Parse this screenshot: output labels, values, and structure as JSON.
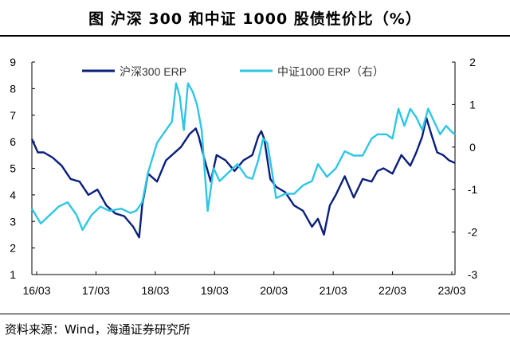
{
  "header": {
    "title": "图  沪深 300 和中证 1000 股债性价比（%）"
  },
  "footer": {
    "source": "资料来源：Wind，海通证券研究所"
  },
  "chart_data": {
    "type": "line",
    "title": "沪深 300 和中证 1000 股债性价比（%）",
    "x_tick_labels": [
      "16/03",
      "17/03",
      "18/03",
      "19/03",
      "20/03",
      "21/03",
      "22/03",
      "23/03"
    ],
    "x_range": [
      2016.2,
      2023.3
    ],
    "y_left": {
      "min": 1,
      "max": 9,
      "ticks": [
        1,
        2,
        3,
        4,
        5,
        6,
        7,
        8,
        9
      ]
    },
    "y_right": {
      "min": -3,
      "max": 2,
      "ticks": [
        -3,
        -2,
        -1,
        0,
        1,
        2
      ]
    },
    "grid": false,
    "legend_position": "top",
    "series": [
      {
        "name": "沪深300 ERP",
        "axis": "left",
        "color": "#0a1f7d",
        "x": [
          2016.2,
          2016.3,
          2016.4,
          2016.55,
          2016.7,
          2016.85,
          2017.0,
          2017.15,
          2017.3,
          2017.45,
          2017.6,
          2017.75,
          2017.9,
          2018.0,
          2018.05,
          2018.15,
          2018.3,
          2018.45,
          2018.55,
          2018.7,
          2018.85,
          2018.95,
          2019.0,
          2019.1,
          2019.2,
          2019.3,
          2019.45,
          2019.6,
          2019.75,
          2019.9,
          2020.0,
          2020.05,
          2020.1,
          2020.2,
          2020.3,
          2020.45,
          2020.6,
          2020.75,
          2020.9,
          2021.0,
          2021.1,
          2021.2,
          2021.3,
          2021.45,
          2021.6,
          2021.75,
          2021.9,
          2022.0,
          2022.1,
          2022.25,
          2022.4,
          2022.55,
          2022.65,
          2022.75,
          2022.82,
          2022.9,
          2023.0,
          2023.1,
          2023.2,
          2023.3
        ],
        "values": [
          6.1,
          5.6,
          5.6,
          5.4,
          5.1,
          4.6,
          4.5,
          4.0,
          4.2,
          3.6,
          3.3,
          3.2,
          2.8,
          2.4,
          3.6,
          4.8,
          4.5,
          5.3,
          5.5,
          5.8,
          6.3,
          6.5,
          6.2,
          5.3,
          4.5,
          5.5,
          5.3,
          4.9,
          5.3,
          5.5,
          6.2,
          6.4,
          6.1,
          4.6,
          4.3,
          4.1,
          3.6,
          3.4,
          2.8,
          3.1,
          2.5,
          3.6,
          4.0,
          4.7,
          3.9,
          4.6,
          4.5,
          4.9,
          5.0,
          4.8,
          5.5,
          5.1,
          5.6,
          6.2,
          6.9,
          6.3,
          5.6,
          5.5,
          5.3,
          5.2
        ]
      },
      {
        "name": "中证1000 ERP（右）",
        "axis": "right",
        "color": "#2ec6e6",
        "x": [
          2016.2,
          2016.35,
          2016.5,
          2016.65,
          2016.8,
          2016.95,
          2017.05,
          2017.2,
          2017.35,
          2017.5,
          2017.7,
          2017.85,
          2017.95,
          2018.05,
          2018.15,
          2018.3,
          2018.4,
          2018.55,
          2018.62,
          2018.68,
          2018.75,
          2018.82,
          2018.9,
          2018.97,
          2019.05,
          2019.15,
          2019.25,
          2019.35,
          2019.5,
          2019.65,
          2019.8,
          2019.9,
          2020.0,
          2020.08,
          2020.15,
          2020.22,
          2020.3,
          2020.45,
          2020.6,
          2020.75,
          2020.9,
          2021.0,
          2021.15,
          2021.3,
          2021.45,
          2021.6,
          2021.75,
          2021.9,
          2022.0,
          2022.15,
          2022.25,
          2022.35,
          2022.45,
          2022.55,
          2022.65,
          2022.75,
          2022.85,
          2022.95,
          2023.05,
          2023.15,
          2023.25,
          2023.3
        ],
        "values": [
          -1.45,
          -1.8,
          -1.6,
          -1.4,
          -1.3,
          -1.6,
          -1.95,
          -1.6,
          -1.4,
          -1.5,
          -1.45,
          -1.55,
          -1.5,
          -1.3,
          -0.6,
          0.1,
          0.3,
          0.6,
          1.5,
          1.2,
          0.4,
          1.5,
          1.3,
          1.0,
          0.4,
          -1.5,
          -0.5,
          -0.8,
          -0.6,
          -0.4,
          -0.7,
          -0.75,
          -0.3,
          0.2,
          0.1,
          -0.5,
          -1.2,
          -1.1,
          -1.1,
          -0.9,
          -0.8,
          -0.4,
          -0.7,
          -0.5,
          -0.1,
          -0.2,
          -0.2,
          0.2,
          0.3,
          0.3,
          0.2,
          0.9,
          0.5,
          0.9,
          0.7,
          0.4,
          0.9,
          0.6,
          0.3,
          0.5,
          0.35,
          0.3
        ]
      }
    ]
  }
}
